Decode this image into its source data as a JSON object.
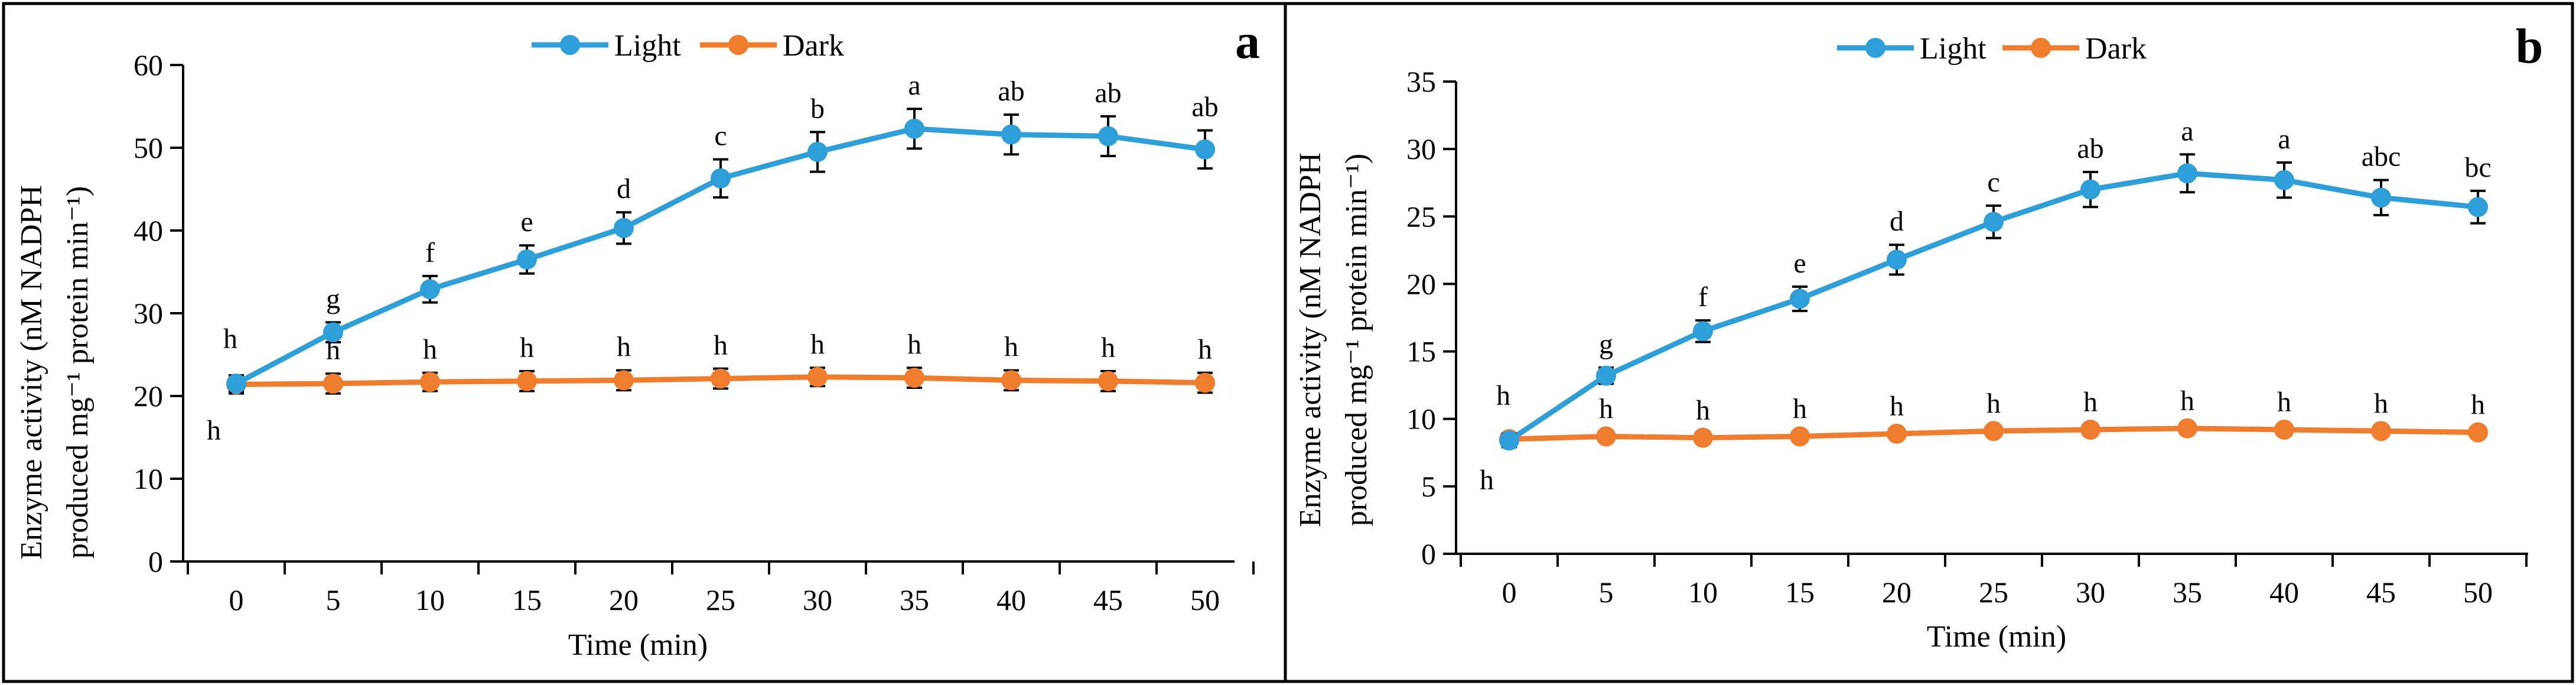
{
  "chart_data": [
    {
      "panel_label": "a",
      "type": "line",
      "x": [
        0,
        5,
        10,
        15,
        20,
        25,
        30,
        35,
        40,
        45,
        50
      ],
      "xlabel": "Time (min)",
      "ylabel_line1": "Enzyme activity (nM NADPH",
      "ylabel_line2": "produced mg⁻¹ protein min⁻¹)",
      "ylim": [
        0,
        60
      ],
      "yticks": [
        0,
        10,
        20,
        30,
        40,
        50,
        60
      ],
      "series": [
        {
          "name": "Light",
          "color": "#2e9fd8",
          "values": [
            21.5,
            27.7,
            32.9,
            36.5,
            40.3,
            46.3,
            49.5,
            52.3,
            51.6,
            51.4,
            49.8
          ],
          "errors": [
            1.0,
            1.2,
            1.6,
            1.7,
            1.9,
            2.3,
            2.4,
            2.4,
            2.4,
            2.4,
            2.3
          ],
          "letters": [
            "h",
            "g",
            "f",
            "e",
            "d",
            "c",
            "b",
            "a",
            "ab",
            "ab",
            "ab"
          ]
        },
        {
          "name": "Dark",
          "color": "#f07c2e",
          "values": [
            21.4,
            21.5,
            21.7,
            21.8,
            21.9,
            22.1,
            22.3,
            22.2,
            21.9,
            21.8,
            21.6
          ],
          "errors": [
            1.1,
            1.2,
            1.1,
            1.2,
            1.2,
            1.2,
            1.1,
            1.2,
            1.2,
            1.2,
            1.2
          ],
          "letters": [
            "h",
            "h",
            "h",
            "h",
            "h",
            "h",
            "h",
            "h",
            "h",
            "h",
            "h"
          ]
        }
      ]
    },
    {
      "panel_label": "b",
      "type": "line",
      "x": [
        0,
        5,
        10,
        15,
        20,
        25,
        30,
        35,
        40,
        45,
        50
      ],
      "xlabel": "Time (min)",
      "ylabel_line1": "Enzyme activity (nM NADPH",
      "ylabel_line2": "produced mg⁻¹ protein min⁻¹)",
      "ylim": [
        0,
        35
      ],
      "yticks": [
        0,
        5,
        10,
        15,
        20,
        25,
        30,
        35
      ],
      "series": [
        {
          "name": "Light",
          "color": "#2e9fd8",
          "values": [
            8.4,
            13.2,
            16.5,
            18.9,
            21.8,
            24.6,
            27.0,
            28.2,
            27.7,
            26.4,
            25.7
          ],
          "errors": [
            0.5,
            0.6,
            0.8,
            0.9,
            1.1,
            1.2,
            1.3,
            1.4,
            1.3,
            1.3,
            1.2
          ],
          "letters": [
            "h",
            "g",
            "f",
            "e",
            "d",
            "c",
            "ab",
            "a",
            "a",
            "abc",
            "bc"
          ]
        },
        {
          "name": "Dark",
          "color": "#f07c2e",
          "values": [
            8.5,
            8.7,
            8.6,
            8.7,
            8.9,
            9.1,
            9.2,
            9.3,
            9.2,
            9.1,
            9.0
          ],
          "errors": [
            0.3,
            0.3,
            0.3,
            0.3,
            0.3,
            0.3,
            0.3,
            0.3,
            0.3,
            0.3,
            0.3
          ],
          "letters": [
            "h",
            "h",
            "h",
            "h",
            "h",
            "h",
            "h",
            "h",
            "h",
            "h",
            "h"
          ]
        }
      ]
    }
  ]
}
